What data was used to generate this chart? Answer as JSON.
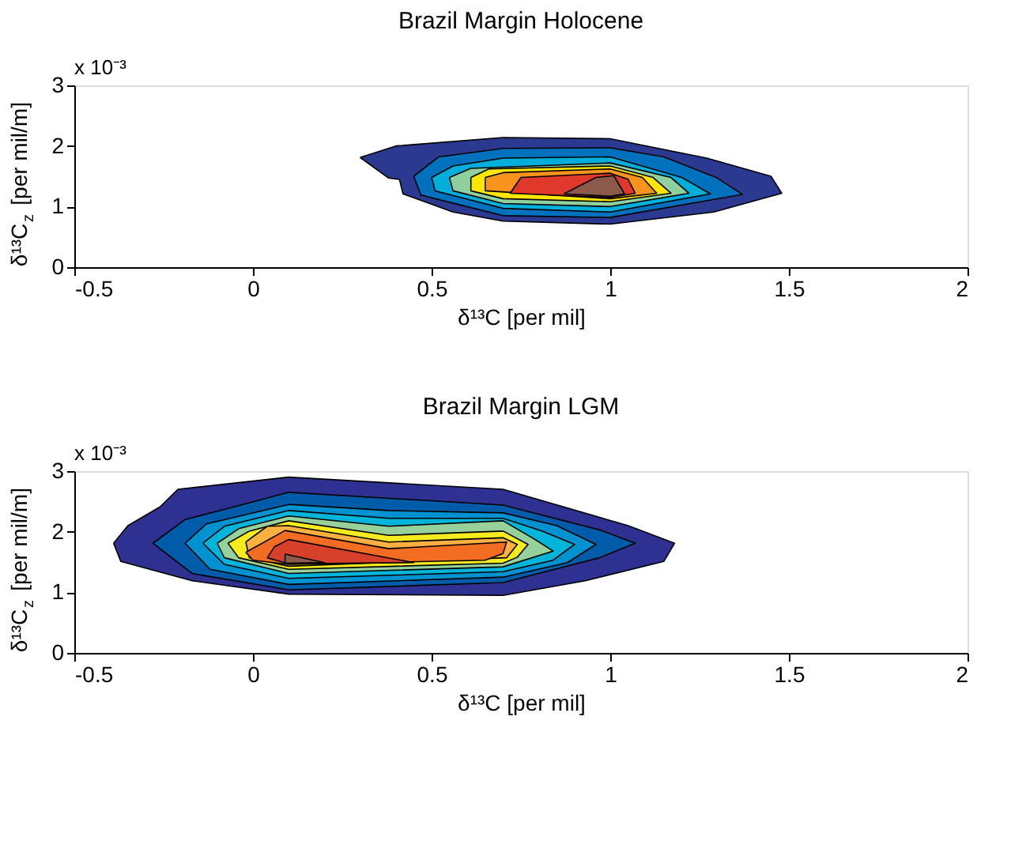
{
  "chart_data": [
    {
      "type": "area",
      "title": "Brazil Margin Holocene",
      "xlabel": "δ¹³C [per mil]",
      "ylabel": "δ¹³C$_{z}$ [per mil/m]",
      "annotations": [
        "x 10⁻³"
      ],
      "xlim": [
        -0.5,
        2
      ],
      "xticks": [
        -0.5,
        0,
        0.5,
        1,
        1.5,
        2
      ],
      "ylim": [
        0,
        3
      ],
      "yticks": [
        0,
        1,
        2,
        3
      ],
      "series": [
        {
          "color": "#2b3990",
          "x": [
            0.3,
            0.4,
            0.7,
            1.0,
            1.27,
            1.45,
            1.48,
            1.29,
            1.0,
            0.7,
            0.56,
            0.42,
            0.41,
            0.38
          ],
          "values": [
            1.81,
            2.0,
            2.14,
            2.12,
            1.8,
            1.5,
            1.22,
            0.91,
            0.71,
            0.76,
            0.91,
            1.21,
            1.45,
            1.47
          ]
        },
        {
          "color": "#0071bc",
          "x": [
            0.45,
            0.52,
            0.7,
            1.0,
            1.15,
            1.3,
            1.37,
            1.0,
            0.7,
            0.47
          ],
          "values": [
            1.5,
            1.82,
            1.96,
            1.97,
            1.82,
            1.47,
            1.2,
            0.82,
            0.85,
            1.19
          ]
        },
        {
          "color": "#00aeda",
          "x": [
            0.5,
            0.56,
            0.7,
            1.0,
            1.2,
            1.28,
            1.0,
            0.7,
            0.51
          ],
          "values": [
            1.48,
            1.67,
            1.8,
            1.82,
            1.48,
            1.21,
            0.91,
            0.97,
            1.26
          ]
        },
        {
          "color": "#8fd19e",
          "x": [
            0.55,
            0.61,
            1.0,
            1.17,
            1.22,
            1.0,
            0.7,
            0.56
          ],
          "values": [
            1.48,
            1.63,
            1.72,
            1.48,
            1.22,
            1.0,
            1.05,
            1.26
          ]
        },
        {
          "color": "#ffe600",
          "x": [
            0.61,
            0.66,
            1.0,
            1.12,
            1.17,
            1.0,
            0.7,
            0.61
          ],
          "values": [
            1.48,
            1.62,
            1.67,
            1.48,
            1.22,
            1.08,
            1.13,
            1.26
          ]
        },
        {
          "color": "#f7941d",
          "x": [
            0.65,
            0.7,
            1.0,
            1.09,
            1.13,
            1.0,
            0.65
          ],
          "values": [
            1.48,
            1.56,
            1.62,
            1.48,
            1.22,
            1.13,
            1.26
          ]
        },
        {
          "color": "#e0382b",
          "x": [
            0.75,
            1.0,
            1.05,
            1.07,
            1.0,
            0.72
          ],
          "values": [
            1.48,
            1.55,
            1.45,
            1.22,
            1.15,
            1.22
          ]
        },
        {
          "color": "#8b5a4a",
          "x": [
            0.87,
            0.96,
            1.01,
            1.04,
            1.0
          ],
          "values": [
            1.21,
            1.48,
            1.51,
            1.21,
            1.17
          ]
        }
      ]
    },
    {
      "type": "area",
      "title": "Brazil Margin LGM",
      "xlabel": "δ¹³C [per mil]",
      "ylabel": "δ¹³C$_{z}$ [per mil/m]",
      "annotations": [
        "x 10⁻³"
      ],
      "xlim": [
        -0.5,
        2
      ],
      "xticks": [
        -0.5,
        0,
        0.5,
        1,
        1.5,
        2
      ],
      "ylim": [
        0,
        3
      ],
      "yticks": [
        0,
        1,
        2,
        3
      ],
      "series": [
        {
          "color": "#2e3192",
          "x": [
            -0.39,
            -0.35,
            -0.26,
            -0.21,
            0.1,
            0.7,
            1.05,
            1.18,
            1.15,
            0.93,
            0.7,
            0.1,
            -0.17,
            -0.37
          ],
          "values": [
            1.81,
            2.1,
            2.41,
            2.7,
            2.9,
            2.7,
            2.1,
            1.81,
            1.51,
            1.19,
            0.95,
            0.97,
            1.19,
            1.51
          ]
        },
        {
          "color": "#005ba9",
          "x": [
            -0.28,
            -0.19,
            -0.04,
            0.1,
            0.7,
            0.97,
            1.07,
            0.97,
            0.7,
            0.1,
            -0.17
          ],
          "values": [
            1.81,
            2.2,
            2.43,
            2.65,
            2.44,
            2.03,
            1.81,
            1.57,
            1.16,
            1.04,
            1.31
          ]
        },
        {
          "color": "#0092d0",
          "x": [
            -0.19,
            -0.13,
            0.1,
            0.38,
            0.7,
            0.85,
            0.96,
            0.88,
            0.7,
            0.1,
            -0.12
          ],
          "values": [
            1.81,
            2.13,
            2.45,
            2.35,
            2.31,
            2.1,
            1.79,
            1.49,
            1.25,
            1.13,
            1.38
          ]
        },
        {
          "color": "#00b5d9",
          "x": [
            -0.14,
            -0.08,
            0.1,
            0.38,
            0.7,
            0.81,
            0.9,
            0.84,
            0.7,
            0.1,
            -0.08
          ],
          "values": [
            1.81,
            2.09,
            2.35,
            2.22,
            2.22,
            2.01,
            1.79,
            1.53,
            1.34,
            1.23,
            1.46
          ]
        },
        {
          "color": "#96d09a",
          "x": [
            -0.1,
            -0.04,
            0.1,
            0.38,
            0.7,
            0.79,
            0.84,
            0.7,
            0.1,
            -0.08
          ],
          "values": [
            1.81,
            2.05,
            2.26,
            2.09,
            2.18,
            1.87,
            1.68,
            1.42,
            1.31,
            1.57
          ]
        },
        {
          "color": "#f5eb1d",
          "x": [
            -0.07,
            -0.01,
            0.1,
            0.38,
            0.7,
            0.77,
            0.74,
            0.7,
            0.1,
            -0.04
          ],
          "values": [
            1.81,
            2.01,
            2.18,
            1.94,
            2.01,
            1.79,
            1.58,
            1.48,
            1.38,
            1.57
          ]
        },
        {
          "color": "#fbb040",
          "x": [
            -0.02,
            0.04,
            0.1,
            0.38,
            0.7,
            0.74,
            0.71,
            0.1,
            -0.01
          ],
          "values": [
            1.83,
            2.09,
            2.1,
            1.83,
            1.9,
            1.79,
            1.57,
            1.43,
            1.57
          ]
        },
        {
          "color": "#f26c22",
          "x": [
            -0.02,
            0.09,
            0.38,
            0.71,
            0.7,
            0.65,
            0.1,
            0.0
          ],
          "values": [
            1.66,
            2.02,
            1.72,
            1.83,
            1.64,
            1.53,
            1.46,
            1.53
          ]
        },
        {
          "color": "#d7402b",
          "x": [
            0.04,
            0.06,
            0.1,
            0.45,
            0.1
          ],
          "values": [
            1.57,
            1.75,
            1.87,
            1.49,
            1.47
          ]
        },
        {
          "color": "#8b5a4a",
          "x": [
            0.09,
            0.2,
            0.09
          ],
          "values": [
            1.63,
            1.49,
            1.48
          ]
        }
      ]
    }
  ]
}
